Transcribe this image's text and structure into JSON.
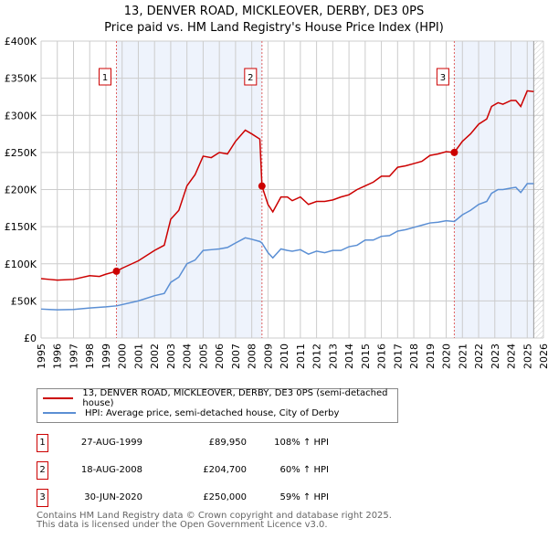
{
  "title": "13, DENVER ROAD, MICKLEOVER, DERBY, DE3 0PS",
  "subtitle": "Price paid vs. HM Land Registry's House Price Index (HPI)",
  "chart_data": {
    "type": "line",
    "ylim": [
      0,
      400000
    ],
    "xlim": [
      1995,
      2026
    ],
    "yticks": [
      {
        "v": 0,
        "label": "£0"
      },
      {
        "v": 50000,
        "label": "£50K"
      },
      {
        "v": 100000,
        "label": "£100K"
      },
      {
        "v": 150000,
        "label": "£150K"
      },
      {
        "v": 200000,
        "label": "£200K"
      },
      {
        "v": 250000,
        "label": "£250K"
      },
      {
        "v": 300000,
        "label": "£300K"
      },
      {
        "v": 350000,
        "label": "£350K"
      },
      {
        "v": 400000,
        "label": "£400K"
      }
    ],
    "xticks": [
      "1995",
      "1996",
      "1997",
      "1998",
      "1999",
      "2000",
      "2001",
      "2002",
      "2003",
      "2004",
      "2005",
      "2006",
      "2007",
      "2008",
      "2009",
      "2010",
      "2011",
      "2012",
      "2013",
      "2014",
      "2015",
      "2016",
      "2017",
      "2018",
      "2019",
      "2020",
      "2021",
      "2022",
      "2023",
      "2024",
      "2025",
      "2026"
    ],
    "series": [
      {
        "name": "13, DENVER ROAD, MICKLEOVER, DERBY, DE3 0PS (semi-detached house)",
        "color": "#cc0000",
        "x": [
          1995,
          1995.5,
          1996,
          1997,
          1998,
          1998.6,
          1999,
          1999.65,
          2000,
          2001,
          2002,
          2002.6,
          2003,
          2003.5,
          2004,
          2004.5,
          2005,
          2005.5,
          2006,
          2006.5,
          2007,
          2007.6,
          2008,
          2008.5,
          2008.63,
          2009,
          2009.3,
          2009.8,
          2010.2,
          2010.5,
          2011,
          2011.5,
          2012,
          2012.5,
          2013,
          2013.5,
          2014,
          2014.5,
          2015,
          2015.5,
          2016,
          2016.5,
          2017,
          2017.5,
          2018,
          2018.5,
          2019,
          2019.5,
          2020,
          2020.5,
          2021,
          2021.5,
          2022,
          2022.5,
          2022.8,
          2023.2,
          2023.5,
          2024,
          2024.3,
          2024.6,
          2025,
          2025.4
        ],
        "y": [
          80000,
          79000,
          78000,
          79000,
          84000,
          83000,
          86000,
          89950,
          94000,
          104000,
          118000,
          125000,
          160000,
          172000,
          205000,
          220000,
          245000,
          243000,
          250000,
          248000,
          265000,
          280000,
          275000,
          268000,
          204700,
          180000,
          170000,
          190000,
          190000,
          185000,
          190000,
          180000,
          184000,
          184000,
          186000,
          190000,
          193000,
          200000,
          205000,
          210000,
          218000,
          218000,
          230000,
          232000,
          235000,
          238000,
          246000,
          248000,
          251000,
          250000,
          265000,
          275000,
          288000,
          295000,
          312000,
          317000,
          315000,
          320000,
          320000,
          312000,
          333000,
          332000
        ]
      },
      {
        "name": "HPI: Average price, semi-detached house, City of Derby",
        "color": "#5b8fd4",
        "x": [
          1995,
          1995.5,
          1996,
          1997,
          1998,
          1999,
          1999.65,
          2000,
          2001,
          2002,
          2002.6,
          2003,
          2003.5,
          2004,
          2004.5,
          2005,
          2005.5,
          2006,
          2006.5,
          2007,
          2007.6,
          2008,
          2008.5,
          2008.63,
          2009,
          2009.3,
          2009.8,
          2010.2,
          2010.5,
          2011,
          2011.5,
          2012,
          2012.5,
          2013,
          2013.5,
          2014,
          2014.5,
          2015,
          2015.5,
          2016,
          2016.5,
          2017,
          2017.5,
          2018,
          2018.5,
          2019,
          2019.5,
          2020,
          2020.5,
          2021,
          2021.5,
          2022,
          2022.5,
          2022.8,
          2023.2,
          2023.5,
          2024,
          2024.3,
          2024.6,
          2025,
          2025.4
        ],
        "y": [
          39000,
          38500,
          38000,
          38500,
          40500,
          42000,
          43300,
          45000,
          50000,
          57000,
          60000,
          75000,
          82000,
          100000,
          105000,
          118000,
          119000,
          120000,
          122000,
          128000,
          135000,
          133000,
          130000,
          128000,
          115000,
          108000,
          120000,
          118000,
          117000,
          119000,
          113000,
          117000,
          115000,
          118000,
          118000,
          123000,
          125000,
          132000,
          132000,
          137000,
          138000,
          144000,
          146000,
          149000,
          152000,
          155000,
          156000,
          158000,
          157000,
          166000,
          172000,
          180000,
          184000,
          195000,
          200000,
          200000,
          202000,
          203000,
          196000,
          208000,
          208000
        ]
      }
    ],
    "sales": [
      {
        "n": "1",
        "x": 1999.65,
        "y": 89950
      },
      {
        "n": "2",
        "x": 2008.63,
        "y": 204700
      },
      {
        "n": "3",
        "x": 2020.5,
        "y": 250000
      }
    ],
    "shaded": [
      [
        1999.65,
        2008.63
      ],
      [
        2020.5,
        2025.4
      ]
    ],
    "forecast_from": 2025.4
  },
  "legend": {
    "red": "13, DENVER ROAD, MICKLEOVER, DERBY, DE3 0PS (semi-detached house)",
    "blue": "HPI: Average price, semi-detached house, City of Derby"
  },
  "table": [
    {
      "n": "1",
      "date": "27-AUG-1999",
      "price": "£89,950",
      "hpi": "108% ↑ HPI"
    },
    {
      "n": "2",
      "date": "18-AUG-2008",
      "price": "£204,700",
      "hpi": "60% ↑ HPI"
    },
    {
      "n": "3",
      "date": "30-JUN-2020",
      "price": "£250,000",
      "hpi": "59% ↑ HPI"
    }
  ],
  "footer": {
    "line1": "Contains HM Land Registry data © Crown copyright and database right 2025.",
    "line2": "This data is licensed under the Open Government Licence v3.0."
  }
}
